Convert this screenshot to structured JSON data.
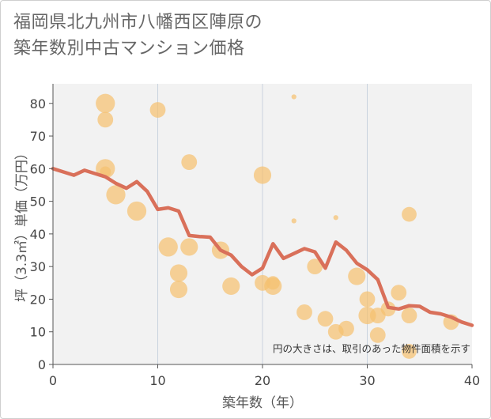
{
  "title_line1": "福岡県北九州市八幡西区陣原の",
  "title_line2": "築年数別中古マンション価格",
  "chart_data": {
    "type": "scatter",
    "xlabel": "築年数（年）",
    "ylabel": "坪（3.3㎡）単価（万円）",
    "xlim": [
      0,
      40
    ],
    "ylim": [
      0,
      86
    ],
    "x_ticks": [
      0,
      10,
      20,
      30,
      40
    ],
    "y_ticks": [
      0,
      10,
      20,
      30,
      40,
      50,
      60,
      70,
      80
    ],
    "grid": true,
    "note": "円の大きさは、取引のあった物件面積を示す",
    "colors": {
      "bubble": "#f5c070",
      "line": "#d9705a",
      "grid": "#c9d3de",
      "plot_bg": "#f2f2f2"
    },
    "bubbles": [
      {
        "x": 5,
        "y": 80,
        "size": 3
      },
      {
        "x": 5,
        "y": 75,
        "size": 2
      },
      {
        "x": 5,
        "y": 60,
        "size": 3
      },
      {
        "x": 5,
        "y": 59,
        "size": 1
      },
      {
        "x": 6,
        "y": 52,
        "size": 3
      },
      {
        "x": 8,
        "y": 47,
        "size": 3
      },
      {
        "x": 10,
        "y": 78,
        "size": 2
      },
      {
        "x": 11,
        "y": 36,
        "size": 3
      },
      {
        "x": 12,
        "y": 28,
        "size": 2.5
      },
      {
        "x": 12,
        "y": 23,
        "size": 2.5
      },
      {
        "x": 13,
        "y": 62,
        "size": 2
      },
      {
        "x": 13,
        "y": 36,
        "size": 2.5
      },
      {
        "x": 16,
        "y": 35,
        "size": 2.5
      },
      {
        "x": 17,
        "y": 24,
        "size": 2.5
      },
      {
        "x": 20,
        "y": 58,
        "size": 2.5
      },
      {
        "x": 20,
        "y": 25,
        "size": 2
      },
      {
        "x": 21,
        "y": 25,
        "size": 1.5
      },
      {
        "x": 21,
        "y": 24,
        "size": 2.5
      },
      {
        "x": 23,
        "y": 82,
        "size": 0.2
      },
      {
        "x": 23,
        "y": 44,
        "size": 0.2
      },
      {
        "x": 24,
        "y": 16,
        "size": 2
      },
      {
        "x": 25,
        "y": 30,
        "size": 2
      },
      {
        "x": 26,
        "y": 14,
        "size": 2
      },
      {
        "x": 27,
        "y": 45,
        "size": 0.2
      },
      {
        "x": 27,
        "y": 10,
        "size": 2
      },
      {
        "x": 28,
        "y": 11,
        "size": 2
      },
      {
        "x": 29,
        "y": 27,
        "size": 2.5
      },
      {
        "x": 30,
        "y": 20,
        "size": 2
      },
      {
        "x": 30,
        "y": 15,
        "size": 2.5
      },
      {
        "x": 31,
        "y": 15,
        "size": 2
      },
      {
        "x": 31,
        "y": 9,
        "size": 2
      },
      {
        "x": 32,
        "y": 17,
        "size": 1.8
      },
      {
        "x": 33,
        "y": 22,
        "size": 2
      },
      {
        "x": 34,
        "y": 46,
        "size": 1.8
      },
      {
        "x": 34,
        "y": 15,
        "size": 2
      },
      {
        "x": 34,
        "y": 4,
        "size": 1.8
      },
      {
        "x": 38,
        "y": 13,
        "size": 2
      }
    ],
    "line": {
      "x": [
        0,
        1,
        2,
        3,
        4,
        5,
        6,
        7,
        8,
        9,
        10,
        11,
        12,
        13,
        14,
        15,
        16,
        17,
        18,
        19,
        20,
        21,
        22,
        23,
        24,
        25,
        26,
        27,
        28,
        29,
        30,
        31,
        32,
        33,
        34,
        35,
        36,
        37,
        38,
        39,
        40
      ],
      "y": [
        60,
        59,
        58,
        59.5,
        58.5,
        57.5,
        55.5,
        54,
        56,
        53,
        47.5,
        48,
        47,
        39.5,
        39.2,
        39,
        35,
        33.5,
        30,
        27.5,
        29.5,
        37,
        32.5,
        34,
        35.5,
        34.5,
        29.5,
        37.5,
        35,
        31,
        29,
        26,
        17.5,
        17,
        18,
        17.8,
        16,
        15.5,
        14.5,
        13,
        12
      ]
    }
  }
}
